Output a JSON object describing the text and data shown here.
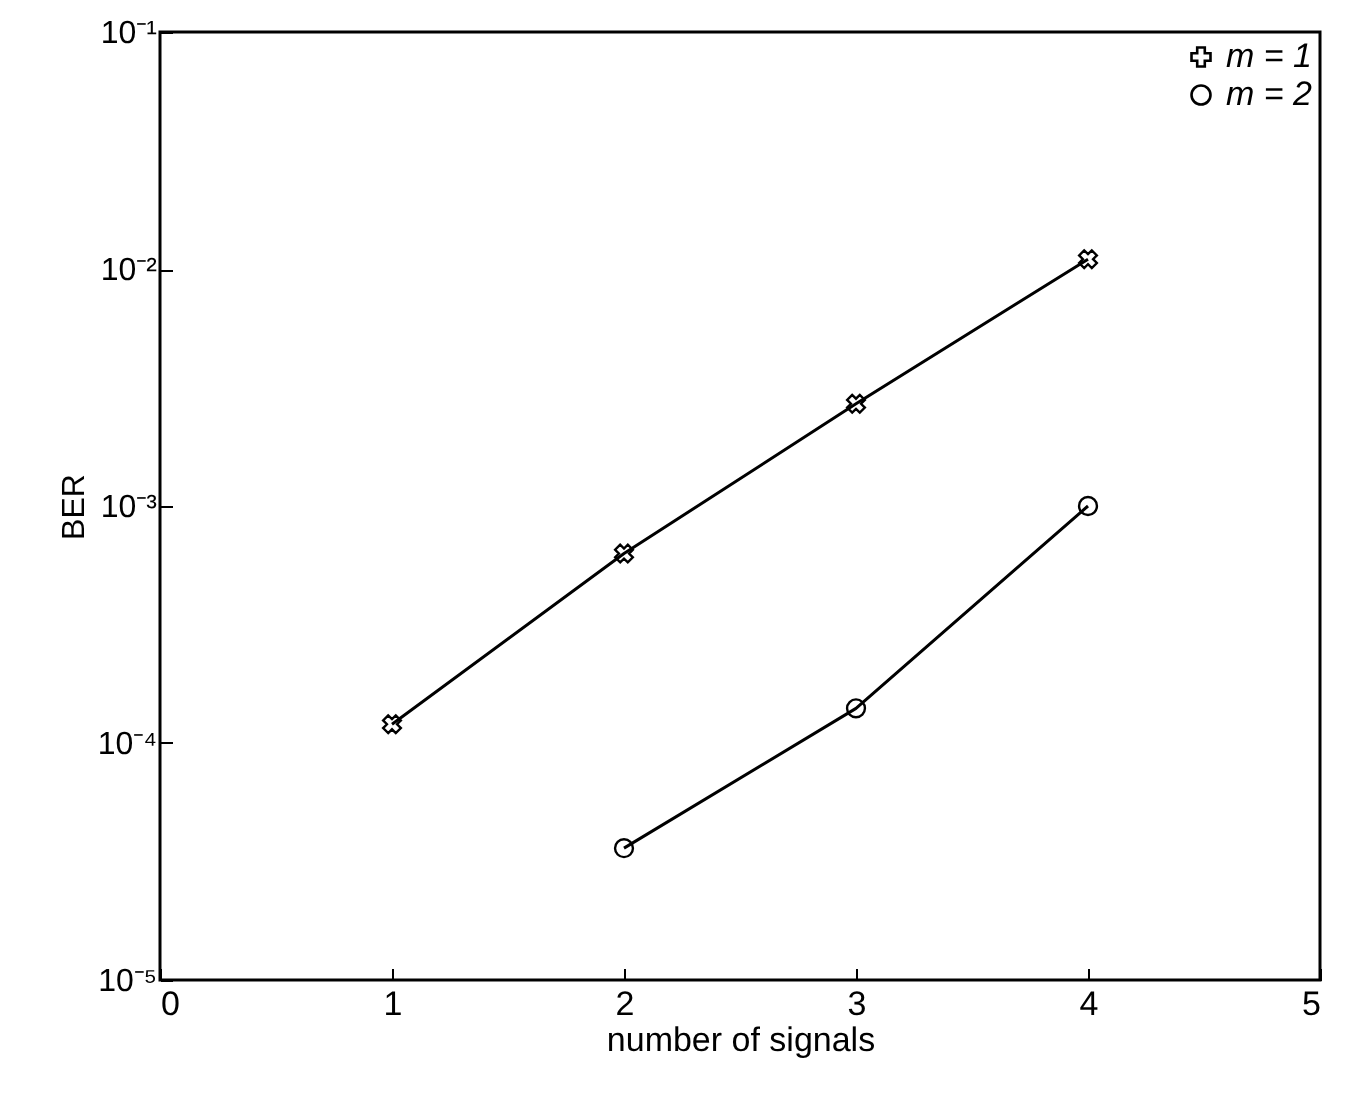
{
  "chart_data": {
    "type": "line",
    "xlabel": "number of signals",
    "ylabel": "BER",
    "x": [
      1,
      2,
      3,
      4
    ],
    "series": [
      {
        "name": "m = 1",
        "color": "#000000",
        "marker": "cross",
        "values": [
          0.00012,
          0.00063,
          0.0027,
          0.011
        ]
      },
      {
        "name": "m = 2",
        "color": "#000000",
        "marker": "circle",
        "values": [
          null,
          3.6e-05,
          0.00014,
          0.001
        ]
      }
    ],
    "log": "y",
    "xlim": [
      0,
      5
    ],
    "xticks": [
      0,
      1,
      2,
      3,
      4,
      5
    ],
    "ylim": [
      1e-05,
      0.1
    ],
    "yticks": [
      {
        "value": 1e-05,
        "label": "10⁻⁵"
      },
      {
        "value": 0.0001,
        "label": "10⁻⁴"
      },
      {
        "value": 0.001,
        "label": "10⁻³"
      },
      {
        "value": 0.01,
        "label": "10⁻²"
      },
      {
        "value": 0.1,
        "label": "10⁻¹"
      }
    ],
    "legend": "top right",
    "line_style": "solid"
  }
}
